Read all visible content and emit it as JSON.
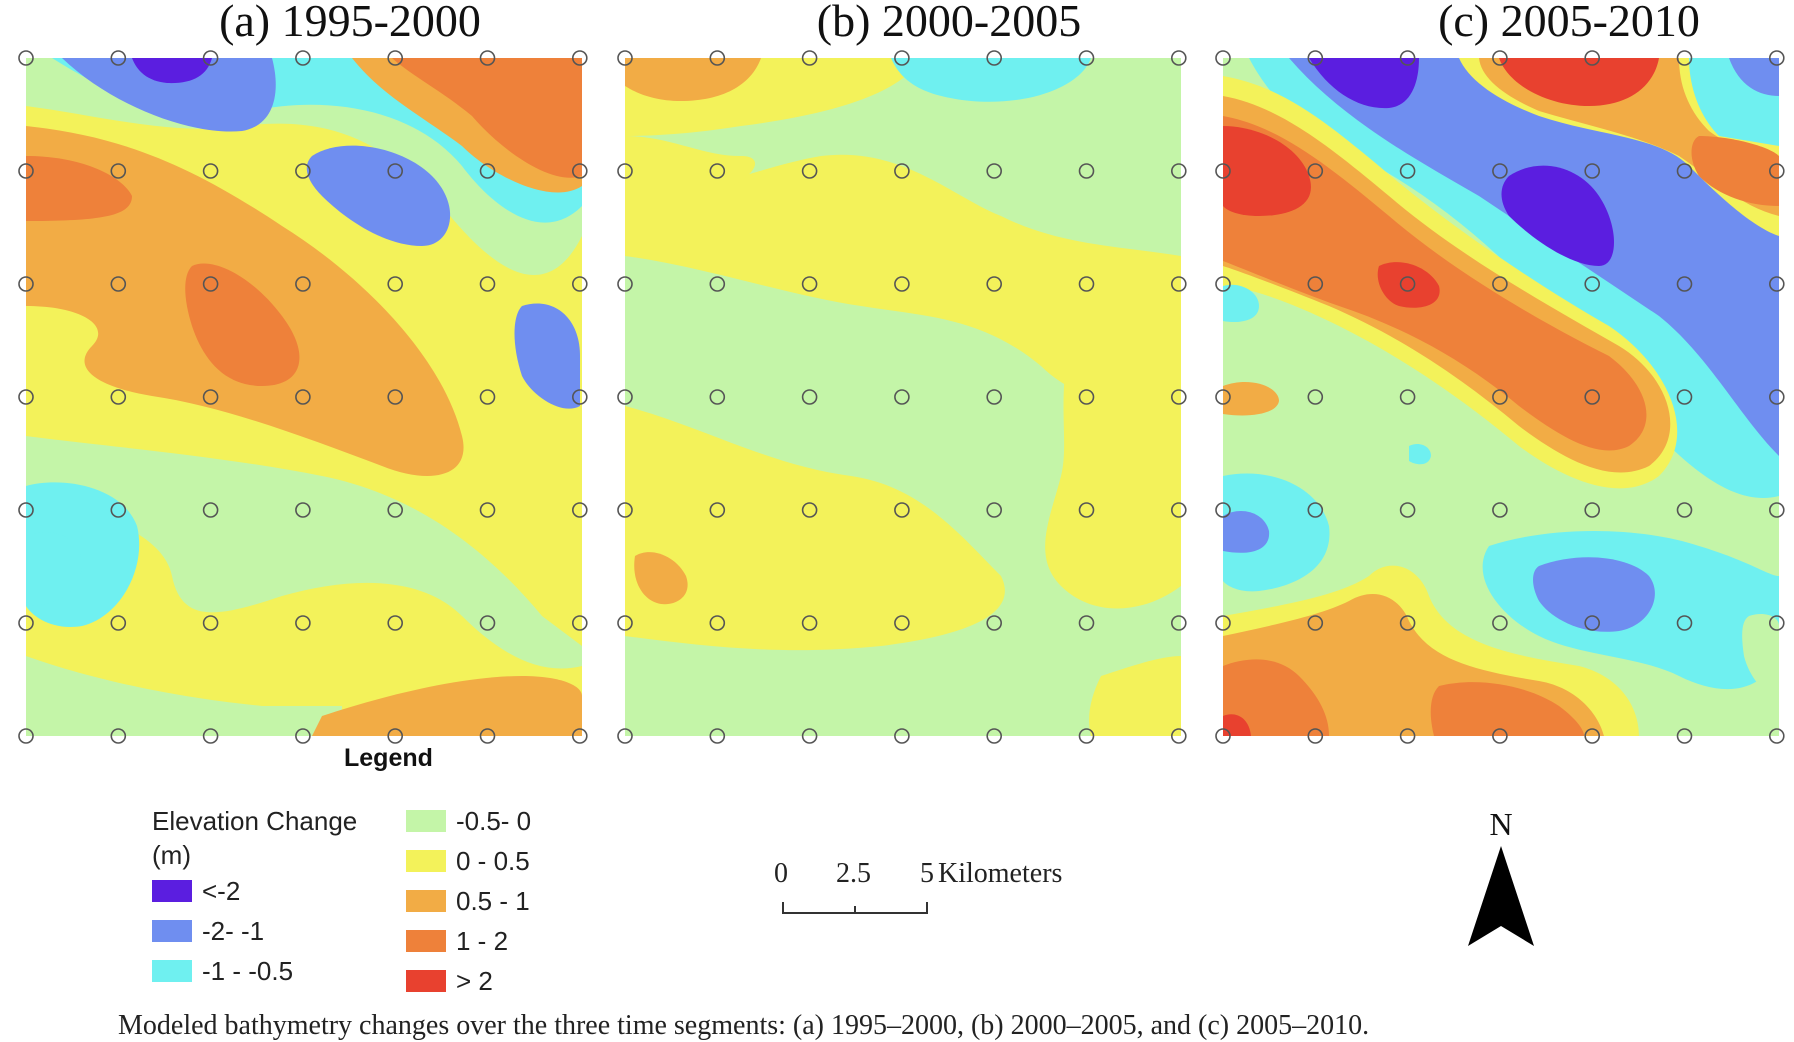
{
  "panels": [
    {
      "label": "(a) 1995-2000"
    },
    {
      "label": "(b) 2000-2005"
    },
    {
      "label": "(c) 2005-2010"
    }
  ],
  "legend": {
    "heading": "Legend",
    "title": "Elevation Change (m)",
    "classes": [
      {
        "label": "<-2",
        "color": "#5b1ee0"
      },
      {
        "label": "-2- -1",
        "color": "#6f8ef0"
      },
      {
        "label": "-1 - -0.5",
        "color": "#6ff0f0"
      },
      {
        "label": "-0.5- 0",
        "color": "#c4f5a8"
      },
      {
        "label": "0 - 0.5",
        "color": "#f3f25a"
      },
      {
        "label": "0.5 - 1",
        "color": "#f2ac45"
      },
      {
        "label": "1 - 2",
        "color": "#ee813a"
      },
      {
        "label": "> 2",
        "color": "#e8412f"
      }
    ]
  },
  "scale_bar": {
    "labels": [
      "0",
      "2.5",
      "5"
    ],
    "unit": "Kilometers"
  },
  "north_arrow": {
    "label": "N"
  },
  "caption": "Modeled bathymetry changes over the three time segments: (a) 1995–2000, (b) 2000–2005, and (c) 2005–2010.",
  "colors": {
    "background": "#ffffff",
    "sample_point": "#555555"
  }
}
